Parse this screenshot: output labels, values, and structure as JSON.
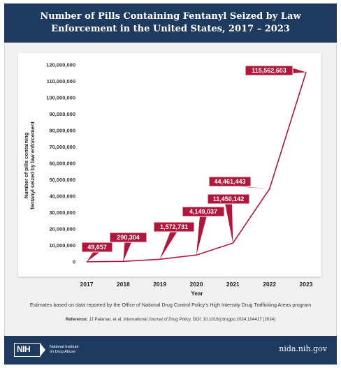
{
  "header": {
    "title": "Number of Pills Containing Fentanyl Seized by Law Enforcement in the United States, 2017 – 2023"
  },
  "chart_data": {
    "type": "line",
    "title": "Number of Pills Containing Fentanyl Seized by Law Enforcement in the United States, 2017 – 2023",
    "xlabel": "Year",
    "ylabel": "Number of pills containing fentanyl seized by law enforcement",
    "x": [
      2017,
      2018,
      2019,
      2020,
      2021,
      2022,
      2023
    ],
    "series": [
      {
        "values": [
          49657,
          290304,
          1572731,
          4149037,
          11450142,
          44461443,
          115562603
        ]
      }
    ],
    "data_labels": [
      "49,657",
      "290,304",
      "1,572,731",
      "4,149,037",
      "11,450,142",
      "44,461,443",
      "115,562,603"
    ],
    "y_ticks": [
      0,
      10000000,
      20000000,
      30000000,
      40000000,
      50000000,
      60000000,
      70000000,
      80000000,
      90000000,
      100000000,
      110000000,
      120000000
    ],
    "y_tick_labels": [
      "0",
      "10,000,000",
      "20,000,000",
      "30,000,000",
      "40,000,000",
      "50,000,000",
      "60,000,000",
      "70,000,000",
      "80,000,000",
      "90,000,000",
      "100,000,000",
      "110,000,000",
      "120,000,000"
    ],
    "x_tick_labels": [
      "2017",
      "2018",
      "2019",
      "2020",
      "2021",
      "2022",
      "2023"
    ],
    "ylim": [
      0,
      120000000
    ],
    "grid": false,
    "line_color": "#b0173b",
    "label_color": "#b0173b"
  },
  "note": "Estimates based on data reported by the Office of National Drug Control Policy's High Intensity Drug Trafficking Areas program",
  "reference": {
    "label": "Reference:",
    "authors": "JJ Palamar, et al.",
    "journal": "International Journal of Drug Policy.",
    "doi": "DOI: 10.1016/j.drugpo.2024.104417 (2024)"
  },
  "footer": {
    "logo_text": "NIH",
    "org_line1": "National Institute",
    "org_line2": "on Drug Abuse",
    "site": "nida.nih.gov"
  }
}
